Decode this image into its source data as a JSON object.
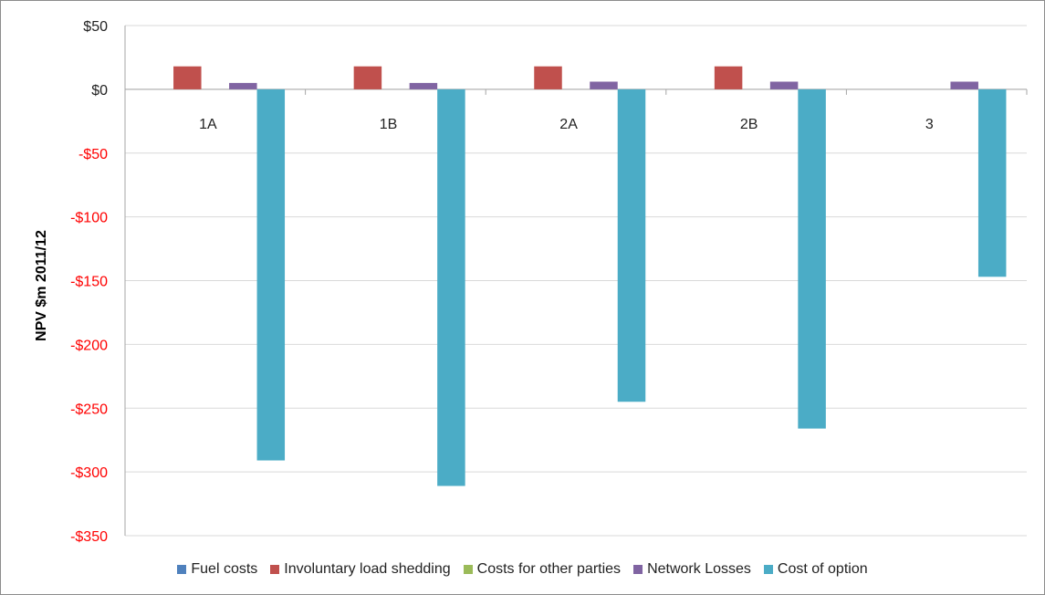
{
  "chart_data": {
    "type": "bar",
    "title": "",
    "xlabel": "",
    "ylabel": "NPV $m 2011/12",
    "ylim": [
      -350,
      50
    ],
    "yticks": [
      50,
      0,
      -50,
      -100,
      -150,
      -200,
      -250,
      -300,
      -350
    ],
    "ytick_labels": [
      "$50",
      "$0",
      "-$50",
      "-$100",
      "-$150",
      "-$200",
      "-$250",
      "-$300",
      "-$350"
    ],
    "negative_tick_color": "#ff0000",
    "grid": true,
    "legend_position": "bottom",
    "categories": [
      "1A",
      "1B",
      "2A",
      "2B",
      "3"
    ],
    "series": [
      {
        "name": "Fuel costs",
        "color": "#4f81bd",
        "values": [
          0,
          0,
          0,
          0,
          0
        ]
      },
      {
        "name": "Involuntary load shedding",
        "color": "#c0504d",
        "values": [
          18,
          18,
          18,
          18,
          0
        ]
      },
      {
        "name": "Costs for other parties",
        "color": "#9bbb59",
        "values": [
          0,
          0,
          0,
          0,
          0
        ]
      },
      {
        "name": "Network Losses",
        "color": "#8064a2",
        "values": [
          5,
          5,
          6,
          6,
          6
        ]
      },
      {
        "name": "Cost of option",
        "color": "#4bacc6",
        "values": [
          -291,
          -311,
          -245,
          -266,
          -147
        ]
      }
    ]
  }
}
